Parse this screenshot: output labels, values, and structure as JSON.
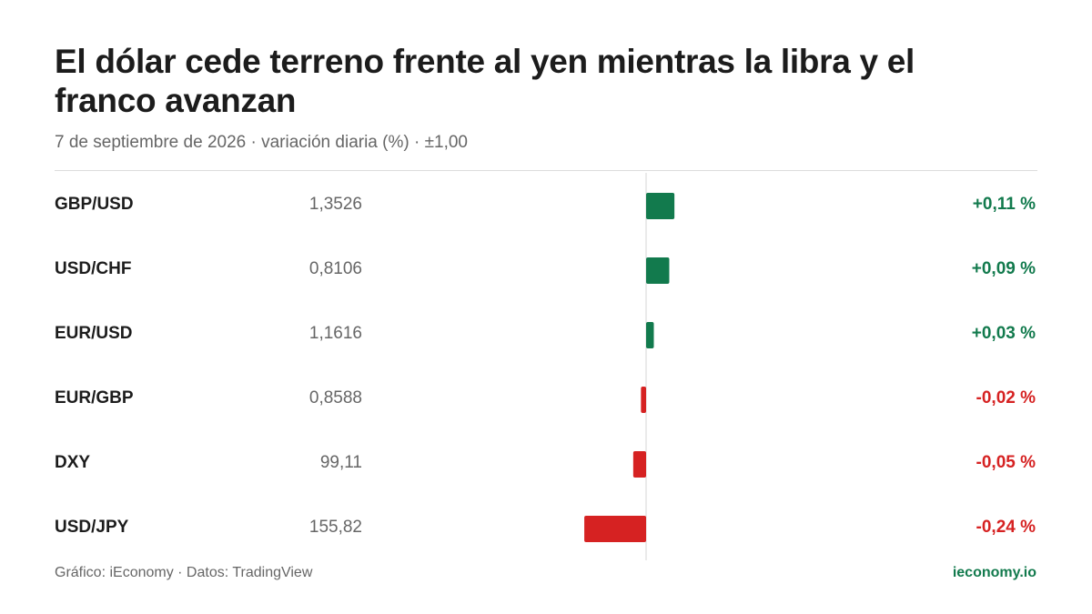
{
  "title": "El dólar cede terreno frente al yen mientras la libra y el franco avanzan",
  "subtitle": "7 de septiembre de 2026 · variación diaria (%) · ±1,00",
  "footer": {
    "source": "Gráfico: iEconomy · Datos: TradingView",
    "brand": "ieconomy.io"
  },
  "colors": {
    "positive": "#127a4d",
    "negative": "#d62222",
    "axis": "#dcdcdc"
  },
  "chart_data": {
    "type": "bar",
    "orientation": "horizontal",
    "scale": [
      -1,
      1
    ],
    "categories": [
      "GBP/USD",
      "USD/CHF",
      "EUR/USD",
      "EUR/GBP",
      "DXY",
      "USD/JPY"
    ],
    "rows": [
      {
        "pair": "GBP/USD",
        "price": "1,3526",
        "value": 0.11,
        "label": "+0,11 %"
      },
      {
        "pair": "USD/CHF",
        "price": "0,8106",
        "value": 0.09,
        "label": "+0,09 %"
      },
      {
        "pair": "EUR/USD",
        "price": "1,1616",
        "value": 0.03,
        "label": "+0,03 %"
      },
      {
        "pair": "EUR/GBP",
        "price": "0,8588",
        "value": -0.02,
        "label": "-0,02 %"
      },
      {
        "pair": "DXY",
        "price": "99,11",
        "value": -0.05,
        "label": "-0,05 %"
      },
      {
        "pair": "USD/JPY",
        "price": "155,82",
        "value": -0.24,
        "label": "-0,24 %"
      }
    ]
  }
}
